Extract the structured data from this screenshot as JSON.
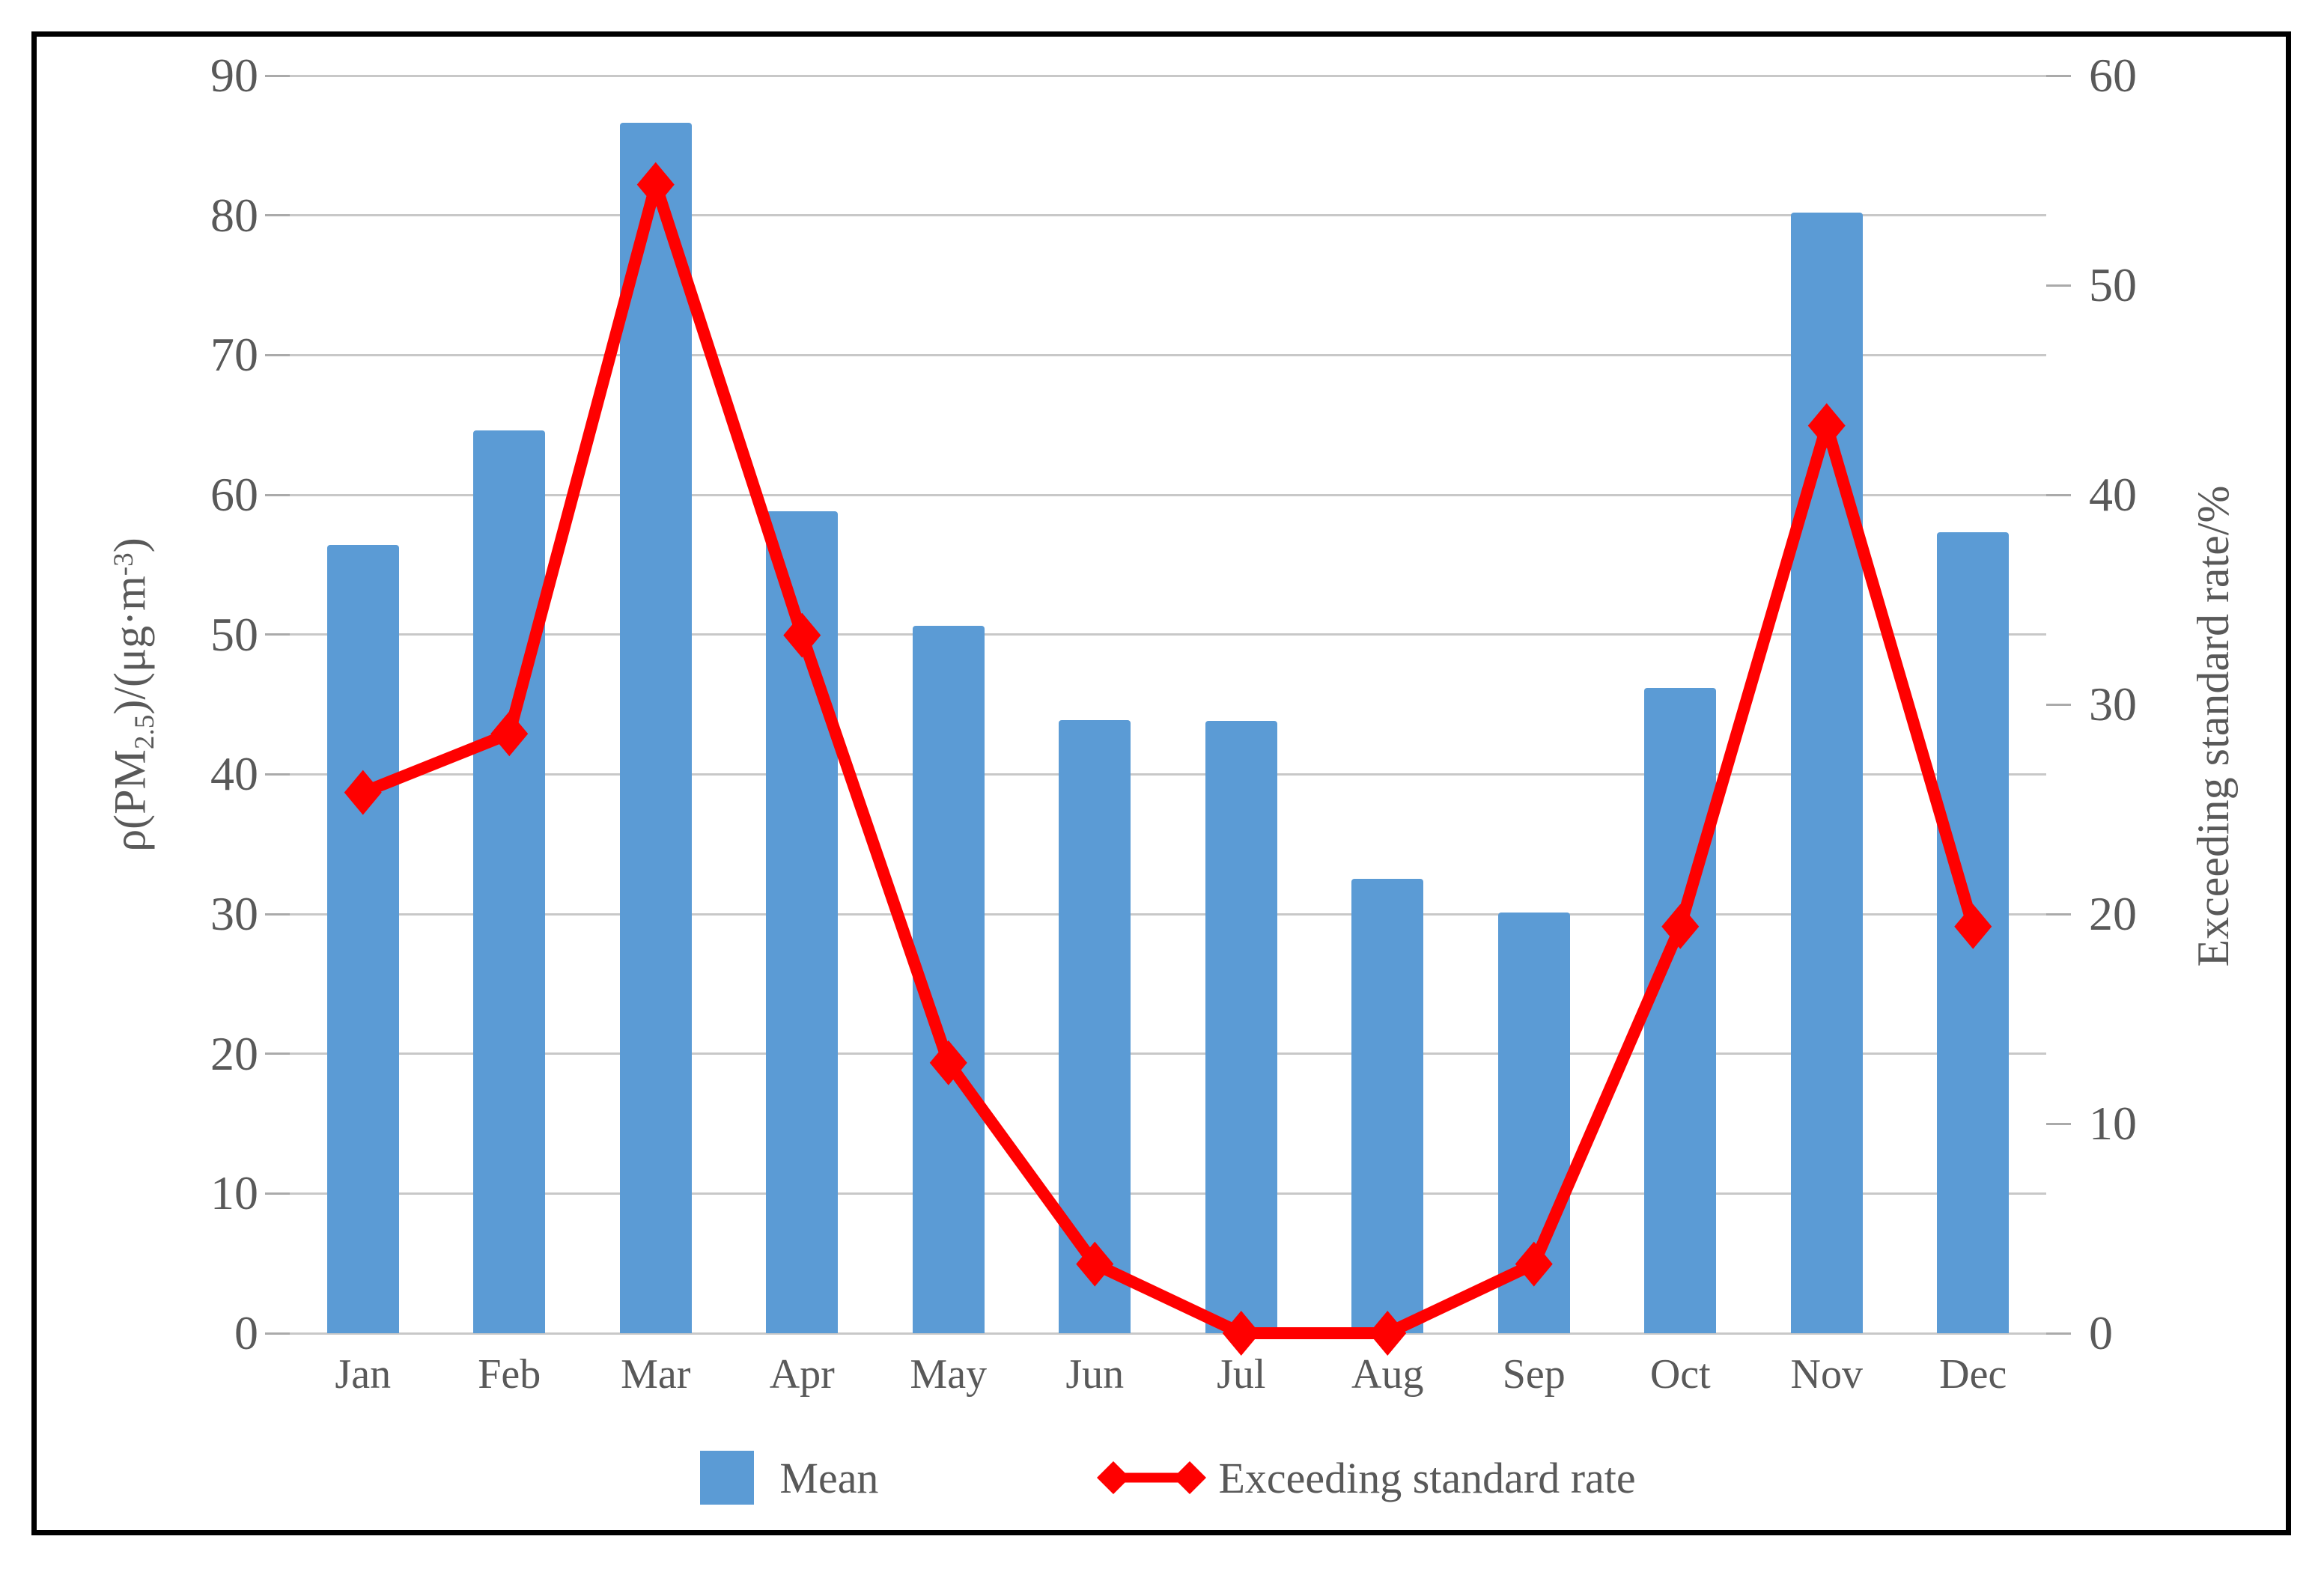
{
  "chart_data": {
    "type": "combo-bar-line",
    "categories": [
      "Jan",
      "Feb",
      "Mar",
      "Apr",
      "May",
      "Jun",
      "Jul",
      "Aug",
      "Sep",
      "Oct",
      "Nov",
      "Dec"
    ],
    "series": [
      {
        "name": "Mean",
        "type": "bar",
        "yaxis": "left",
        "color": "#5B9BD5",
        "values": [
          56.4,
          64.6,
          86.6,
          58.8,
          50.6,
          43.9,
          43.8,
          32.5,
          30.1,
          46.2,
          80.2,
          57.3
        ]
      },
      {
        "name": "Exceeding standard rate",
        "type": "line",
        "yaxis": "right",
        "color": "#FF0000",
        "marker": "diamond",
        "values": [
          25.8,
          28.6,
          54.8,
          33.3,
          12.9,
          3.3,
          0,
          0,
          3.3,
          19.4,
          43.3,
          19.4
        ]
      }
    ],
    "left_axis": {
      "title": "ρ(PM2.5)/(μg·m-3)",
      "title_parts": {
        "p1": "ρ(PM",
        "sub": "2.5",
        "p2": ")/(μg·m",
        "sup": "-3",
        "p3": ")"
      },
      "min": 0,
      "max": 90,
      "step": 10,
      "tick_labels": [
        "90",
        "80",
        "70",
        "60",
        "50",
        "40",
        "30",
        "20",
        "10",
        "0"
      ]
    },
    "right_axis": {
      "title": "Exceeding standard rate/%",
      "min": 0,
      "max": 60,
      "step": 10,
      "tick_labels": [
        "60",
        "50",
        "40",
        "30",
        "20",
        "10",
        "0"
      ]
    },
    "grid": true,
    "legend_position": "bottom"
  },
  "legend": {
    "mean_label": "Mean",
    "rate_label": "Exceeding standard rate"
  },
  "colors": {
    "bar": "#5B9BD5",
    "line": "#FF0000",
    "text": "#595959",
    "gridline": "#C8C8C8",
    "tick": "#AAAAAA",
    "frame": "#000000"
  }
}
